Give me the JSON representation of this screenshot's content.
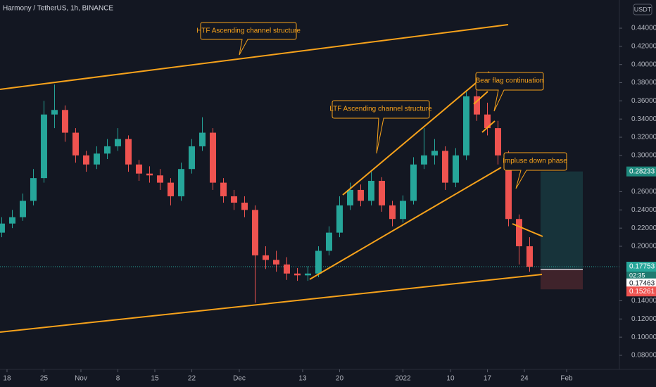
{
  "chart_data": {
    "type": "candlestick",
    "title": "Harmony / TetherUS, 1h, BINANCE",
    "currency": "USDT",
    "x": [
      -1,
      1,
      3,
      5,
      7,
      9,
      11,
      13,
      15,
      17,
      19,
      21,
      23,
      25,
      27,
      29,
      31,
      33,
      35,
      37,
      39,
      41,
      43,
      45,
      47,
      49,
      51,
      53,
      55,
      57,
      59,
      61,
      63,
      65,
      67,
      69,
      71,
      73,
      75,
      77,
      79,
      81,
      83,
      85,
      87,
      89,
      91,
      93,
      95,
      97,
      99
    ],
    "open": [
      0.215,
      0.225,
      0.232,
      0.25,
      0.275,
      0.345,
      0.35,
      0.325,
      0.3,
      0.29,
      0.302,
      0.31,
      0.318,
      0.29,
      0.28,
      0.278,
      0.27,
      0.255,
      0.285,
      0.31,
      0.325,
      0.27,
      0.255,
      0.248,
      0.24,
      0.19,
      0.185,
      0.18,
      0.17,
      0.168,
      0.17,
      0.195,
      0.215,
      0.245,
      0.262,
      0.25,
      0.272,
      0.245,
      0.23,
      0.25,
      0.29,
      0.3,
      0.305,
      0.27,
      0.3,
      0.365,
      0.345,
      0.33,
      0.3,
      0.23,
      0.2
    ],
    "high": [
      0.232,
      0.24,
      0.258,
      0.285,
      0.36,
      0.378,
      0.355,
      0.33,
      0.305,
      0.31,
      0.318,
      0.33,
      0.322,
      0.295,
      0.288,
      0.285,
      0.275,
      0.292,
      0.318,
      0.342,
      0.33,
      0.275,
      0.262,
      0.255,
      0.245,
      0.2,
      0.195,
      0.188,
      0.176,
      0.178,
      0.2,
      0.222,
      0.255,
      0.27,
      0.268,
      0.282,
      0.276,
      0.25,
      0.256,
      0.298,
      0.33,
      0.318,
      0.31,
      0.308,
      0.37,
      0.375,
      0.358,
      0.338,
      0.305,
      0.235,
      0.21
    ],
    "low": [
      0.21,
      0.22,
      0.228,
      0.245,
      0.27,
      0.33,
      0.315,
      0.292,
      0.282,
      0.285,
      0.296,
      0.305,
      0.282,
      0.272,
      0.27,
      0.262,
      0.245,
      0.25,
      0.28,
      0.305,
      0.262,
      0.248,
      0.24,
      0.232,
      0.138,
      0.175,
      0.172,
      0.163,
      0.162,
      0.162,
      0.166,
      0.19,
      0.21,
      0.24,
      0.244,
      0.245,
      0.238,
      0.222,
      0.226,
      0.246,
      0.285,
      0.29,
      0.262,
      0.265,
      0.295,
      0.338,
      0.322,
      0.29,
      0.222,
      0.18,
      0.172
    ],
    "close": [
      0.225,
      0.232,
      0.25,
      0.275,
      0.345,
      0.35,
      0.325,
      0.3,
      0.29,
      0.302,
      0.31,
      0.318,
      0.29,
      0.28,
      0.278,
      0.27,
      0.255,
      0.285,
      0.31,
      0.325,
      0.27,
      0.255,
      0.248,
      0.24,
      0.19,
      0.185,
      0.18,
      0.17,
      0.168,
      0.17,
      0.195,
      0.215,
      0.245,
      0.262,
      0.25,
      0.272,
      0.245,
      0.23,
      0.25,
      0.29,
      0.3,
      0.305,
      0.27,
      0.3,
      0.365,
      0.345,
      0.33,
      0.3,
      0.23,
      0.2,
      0.1775
    ],
    "up_color": "#26a69a",
    "down_color": "#ef5350",
    "xlim": [
      -1.33,
      116
    ],
    "xticks": [
      {
        "value": 0,
        "label": "18"
      },
      {
        "value": 7,
        "label": "25"
      },
      {
        "value": 14,
        "label": "Nov"
      },
      {
        "value": 21,
        "label": "8"
      },
      {
        "value": 28,
        "label": "15"
      },
      {
        "value": 35,
        "label": "22"
      },
      {
        "value": 44,
        "label": "Dec"
      },
      {
        "value": 56,
        "label": "13"
      },
      {
        "value": 63,
        "label": "20"
      },
      {
        "value": 75,
        "label": "2022"
      },
      {
        "value": 84,
        "label": "10"
      },
      {
        "value": 91,
        "label": "17"
      },
      {
        "value": 98,
        "label": "24"
      },
      {
        "value": 106,
        "label": "Feb"
      }
    ],
    "ylim": [
      0.0645,
      0.471
    ],
    "yticks": [
      {
        "value": 0.44,
        "label": "0.44000"
      },
      {
        "value": 0.42,
        "label": "0.42000"
      },
      {
        "value": 0.4,
        "label": "0.40000"
      },
      {
        "value": 0.38,
        "label": "0.38000"
      },
      {
        "value": 0.36,
        "label": "0.36000"
      },
      {
        "value": 0.34,
        "label": "0.34000"
      },
      {
        "value": 0.32,
        "label": "0.32000"
      },
      {
        "value": 0.3,
        "label": "0.30000"
      },
      {
        "value": 0.26,
        "label": "0.26000"
      },
      {
        "value": 0.24,
        "label": "0.24000"
      },
      {
        "value": 0.22,
        "label": "0.22000"
      },
      {
        "value": 0.2,
        "label": "0.20000"
      },
      {
        "value": 0.14,
        "label": "0.14000"
      },
      {
        "value": 0.12,
        "label": "0.12000"
      },
      {
        "value": 0.1,
        "label": "0.10000"
      },
      {
        "value": 0.08,
        "label": "0.08000"
      }
    ],
    "current_price": 0.17753,
    "countdown": "02:35",
    "position": {
      "target": 0.28233,
      "entry": 0.17463,
      "stop": 0.15261
    },
    "annotations": [
      "HTF Ascending channel structure",
      "LTF Ascending channel structure",
      "Bear flag continuation",
      "Impluse down phase"
    ]
  }
}
